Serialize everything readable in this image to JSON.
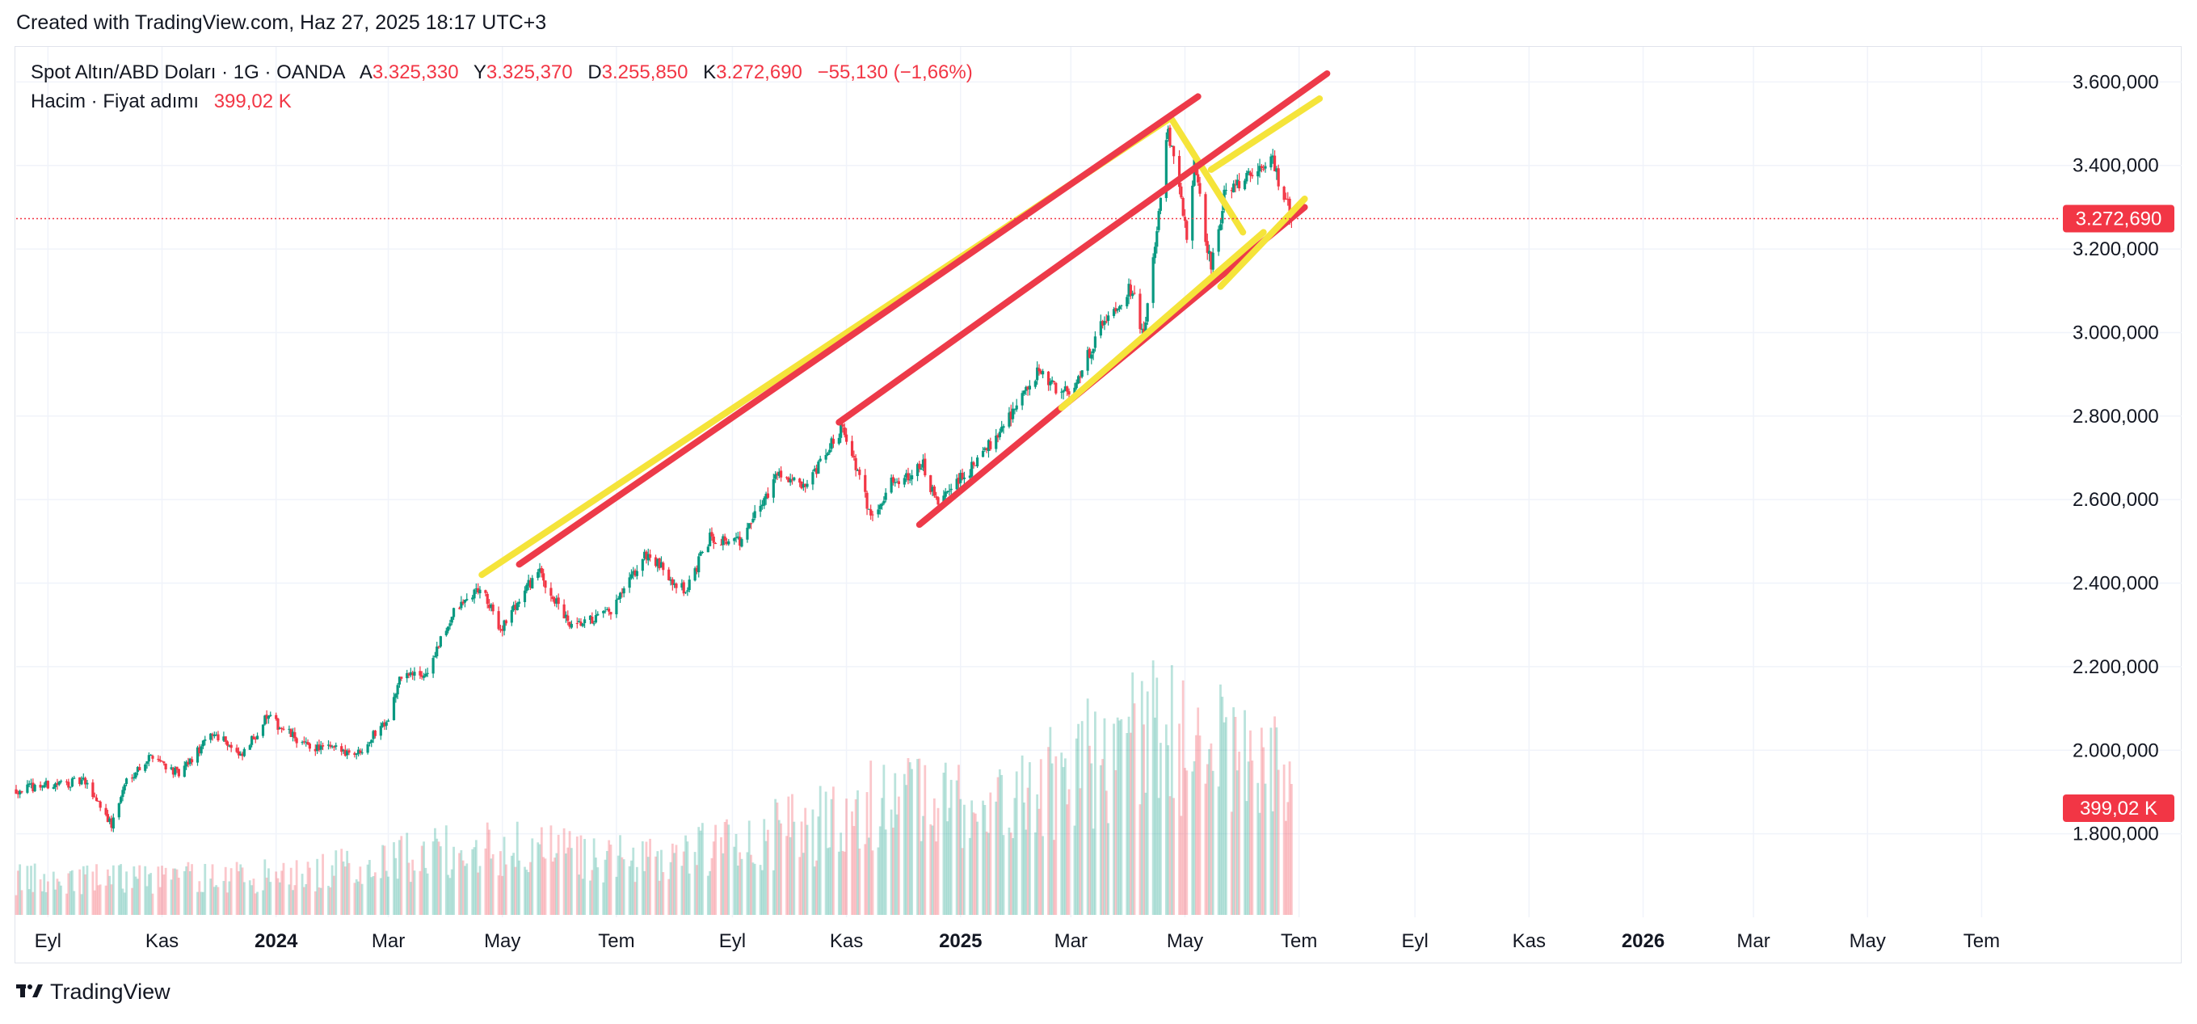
{
  "header": {
    "created_text": "Created with TradingView.com, Haz 27, 2025 18:17 UTC+3"
  },
  "legend": {
    "symbol": "Spot Altın/ABD Doları · 1G · OANDA",
    "open_label": "A",
    "open_value": "3.325,330",
    "high_label": "Y",
    "high_value": "3.325,370",
    "low_label": "D",
    "low_value": "3.255,850",
    "close_label": "K",
    "close_value": "3.272,690",
    "change": "−55,130 (−1,66%)",
    "volume_label": "Hacim · Fiyat adımı",
    "volume_value": "399,02 K"
  },
  "footer": {
    "brand": "TradingView",
    "logo_icon": "tradingview-logo-icon"
  },
  "colors": {
    "up": "#089981",
    "down": "#f23645",
    "channel_yellow": "#f5e43a",
    "channel_red": "#ed3a49",
    "grid": "#f0f3fa",
    "price_line": "#f23645"
  },
  "chart_data": {
    "type": "candlestick",
    "symbol": "Spot Altın/ABD Doları",
    "interval": "1G",
    "ylim": [
      1600,
      3680
    ],
    "y_ticks": [
      {
        "value": 1800,
        "label": "1.800,000"
      },
      {
        "value": 2000,
        "label": "2.000,000"
      },
      {
        "value": 2200,
        "label": "2.200,000"
      },
      {
        "value": 2400,
        "label": "2.400,000"
      },
      {
        "value": 2600,
        "label": "2.600,000"
      },
      {
        "value": 2800,
        "label": "2.800,000"
      },
      {
        "value": 3000,
        "label": "3.000,000"
      },
      {
        "value": 3200,
        "label": "3.200,000"
      },
      {
        "value": 3400,
        "label": "3.400,000"
      },
      {
        "value": 3600,
        "label": "3.600,000"
      }
    ],
    "x_ticks": [
      {
        "date": "2023-09-01",
        "label": "Eyl",
        "bold": false
      },
      {
        "date": "2023-11-01",
        "label": "Kas",
        "bold": false
      },
      {
        "date": "2024-01-01",
        "label": "2024",
        "bold": true
      },
      {
        "date": "2024-03-01",
        "label": "Mar",
        "bold": false
      },
      {
        "date": "2024-05-01",
        "label": "May",
        "bold": false
      },
      {
        "date": "2024-07-01",
        "label": "Tem",
        "bold": false
      },
      {
        "date": "2024-09-01",
        "label": "Eyl",
        "bold": false
      },
      {
        "date": "2024-11-01",
        "label": "Kas",
        "bold": false
      },
      {
        "date": "2025-01-01",
        "label": "2025",
        "bold": true
      },
      {
        "date": "2025-03-01",
        "label": "Mar",
        "bold": false
      },
      {
        "date": "2025-05-01",
        "label": "May",
        "bold": false
      },
      {
        "date": "2025-07-01",
        "label": "Tem",
        "bold": false
      },
      {
        "date": "2025-09-01",
        "label": "Eyl",
        "bold": false
      },
      {
        "date": "2025-11-01",
        "label": "Kas",
        "bold": false
      },
      {
        "date": "2026-01-01",
        "label": "2026",
        "bold": true
      },
      {
        "date": "2026-03-01",
        "label": "Mar",
        "bold": false
      },
      {
        "date": "2026-05-01",
        "label": "May",
        "bold": false
      },
      {
        "date": "2026-07-01",
        "label": "Tem",
        "bold": false
      }
    ],
    "xlim": [
      "2023-08-15",
      "2026-08-10"
    ],
    "last_price": {
      "value": 3272.69,
      "label": "3.272,690"
    },
    "volume_badge": {
      "label": "399,02 K"
    },
    "price_path": [
      {
        "date": "2023-08-15",
        "close": 1905
      },
      {
        "date": "2023-08-28",
        "close": 1915
      },
      {
        "date": "2023-09-08",
        "close": 1920
      },
      {
        "date": "2023-09-20",
        "close": 1925
      },
      {
        "date": "2023-09-29",
        "close": 1870
      },
      {
        "date": "2023-10-05",
        "close": 1820
      },
      {
        "date": "2023-10-13",
        "close": 1930
      },
      {
        "date": "2023-10-27",
        "close": 1990
      },
      {
        "date": "2023-11-10",
        "close": 1940
      },
      {
        "date": "2023-11-28",
        "close": 2040
      },
      {
        "date": "2023-12-04",
        "close": 2030
      },
      {
        "date": "2023-12-13",
        "close": 1980
      },
      {
        "date": "2023-12-27",
        "close": 2080
      },
      {
        "date": "2024-01-17",
        "close": 2010
      },
      {
        "date": "2024-02-14",
        "close": 1995
      },
      {
        "date": "2024-03-01",
        "close": 2080
      },
      {
        "date": "2024-03-08",
        "close": 2180
      },
      {
        "date": "2024-03-21",
        "close": 2180
      },
      {
        "date": "2024-04-05",
        "close": 2330
      },
      {
        "date": "2024-04-12",
        "close": 2360
      },
      {
        "date": "2024-04-19",
        "close": 2390
      },
      {
        "date": "2024-04-30",
        "close": 2290
      },
      {
        "date": "2024-05-20",
        "close": 2430
      },
      {
        "date": "2024-06-07",
        "close": 2290
      },
      {
        "date": "2024-06-28",
        "close": 2330
      },
      {
        "date": "2024-07-17",
        "close": 2470
      },
      {
        "date": "2024-08-07",
        "close": 2380
      },
      {
        "date": "2024-08-20",
        "close": 2510
      },
      {
        "date": "2024-09-06",
        "close": 2500
      },
      {
        "date": "2024-09-26",
        "close": 2670
      },
      {
        "date": "2024-10-10",
        "close": 2620
      },
      {
        "date": "2024-10-30",
        "close": 2780
      },
      {
        "date": "2024-11-14",
        "close": 2560
      },
      {
        "date": "2024-11-25",
        "close": 2640
      },
      {
        "date": "2024-12-12",
        "close": 2680
      },
      {
        "date": "2024-12-19",
        "close": 2590
      },
      {
        "date": "2025-01-10",
        "close": 2690
      },
      {
        "date": "2025-02-11",
        "close": 2900
      },
      {
        "date": "2025-02-28",
        "close": 2850
      },
      {
        "date": "2025-03-20",
        "close": 3040
      },
      {
        "date": "2025-04-03",
        "close": 3110
      },
      {
        "date": "2025-04-09",
        "close": 2980
      },
      {
        "date": "2025-04-22",
        "close": 3480
      },
      {
        "date": "2025-05-02",
        "close": 3240
      },
      {
        "date": "2025-05-06",
        "close": 3400
      },
      {
        "date": "2025-05-15",
        "close": 3150
      },
      {
        "date": "2025-05-23",
        "close": 3350
      },
      {
        "date": "2025-06-05",
        "close": 3370
      },
      {
        "date": "2025-06-16",
        "close": 3420
      },
      {
        "date": "2025-06-27",
        "close": 3273
      }
    ],
    "volume_scale": {
      "min": 0,
      "max": 50
    },
    "volume_path": [
      {
        "date": "2023-08-15",
        "value": 8
      },
      {
        "date": "2024-01-15",
        "value": 9
      },
      {
        "date": "2024-04-15",
        "value": 16
      },
      {
        "date": "2024-07-15",
        "value": 12
      },
      {
        "date": "2024-10-15",
        "value": 20
      },
      {
        "date": "2024-12-01",
        "value": 28
      },
      {
        "date": "2025-01-15",
        "value": 22
      },
      {
        "date": "2025-04-15",
        "value": 42
      },
      {
        "date": "2025-06-27",
        "value": 30
      }
    ],
    "trendlines": [
      {
        "name": "yellow-upper-1",
        "color": "yellow",
        "p1": {
          "date": "2024-04-20",
          "value": 2420
        },
        "p2": {
          "date": "2025-04-22",
          "value": 3510
        }
      },
      {
        "name": "yellow-upper-2",
        "color": "yellow",
        "p1": {
          "date": "2025-04-24",
          "value": 3510
        },
        "p2": {
          "date": "2025-06-01",
          "value": 3240
        }
      },
      {
        "name": "red-upper",
        "color": "red",
        "p1": {
          "date": "2024-05-10",
          "value": 2445
        },
        "p2": {
          "date": "2025-05-08",
          "value": 3565
        }
      },
      {
        "name": "red-mid",
        "color": "red",
        "p1": {
          "date": "2024-10-28",
          "value": 2785
        },
        "p2": {
          "date": "2025-07-16",
          "value": 3620
        }
      },
      {
        "name": "red-lower",
        "color": "red",
        "p1": {
          "date": "2024-12-10",
          "value": 2540
        },
        "p2": {
          "date": "2025-07-04",
          "value": 3300
        }
      },
      {
        "name": "yellow-lower",
        "color": "yellow",
        "p1": {
          "date": "2025-02-24",
          "value": 2820
        },
        "p2": {
          "date": "2025-06-12",
          "value": 3240
        }
      },
      {
        "name": "yellow-mid-upper",
        "color": "yellow",
        "p1": {
          "date": "2025-05-15",
          "value": 3390
        },
        "p2": {
          "date": "2025-07-12",
          "value": 3560
        }
      },
      {
        "name": "yellow-lower-2",
        "color": "yellow",
        "p1": {
          "date": "2025-05-20",
          "value": 3110
        },
        "p2": {
          "date": "2025-07-04",
          "value": 3320
        }
      }
    ]
  }
}
